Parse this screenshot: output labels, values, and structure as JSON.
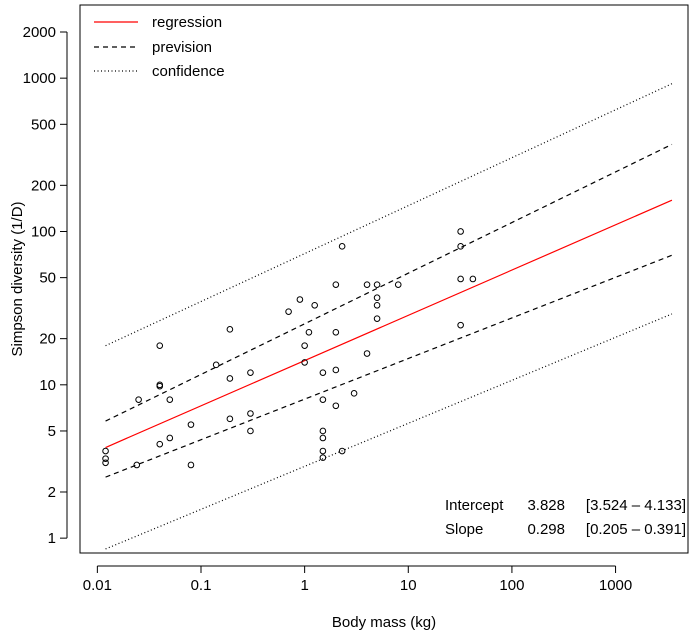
{
  "chart_data": {
    "type": "scatter",
    "xlabel": "Body mass (kg)",
    "ylabel": "Simpson diversity (1/D)",
    "xscale": "log",
    "yscale": "log",
    "xlim": [
      0.0068,
      5000
    ],
    "ylim": [
      0.8,
      3000
    ],
    "x_ticks": [
      0.01,
      0.1,
      1,
      10,
      100,
      1000
    ],
    "x_tick_labels": [
      "0.01",
      "0.1",
      "1",
      "10",
      "100",
      "1000"
    ],
    "y_ticks": [
      1,
      2,
      5,
      10,
      20,
      50,
      100,
      200,
      500,
      1000,
      2000
    ],
    "y_tick_labels": [
      "1",
      "2",
      "5",
      "10",
      "20",
      "50",
      "100",
      "200",
      "500",
      "1000",
      "2000"
    ],
    "grid": false,
    "legend_position": "top-left",
    "legend": [
      {
        "label": "regression",
        "color": "#ff0000",
        "style": "solid"
      },
      {
        "label": "prevision",
        "color": "#000000",
        "style": "dashed"
      },
      {
        "label": "confidence",
        "color": "#000000",
        "style": "dotted"
      }
    ],
    "stats": {
      "intercept_label": "Intercept",
      "intercept_value": "3.828",
      "intercept_ci": "[3.524 – 4.133]",
      "slope_label": "Slope",
      "slope_value": "0.298",
      "slope_ci": "[0.205 – 0.391]"
    },
    "lines": [
      {
        "name": "regression",
        "color": "#ff0000",
        "style": "solid",
        "x": [
          0.012,
          3500
        ],
        "y": [
          3.9,
          160
        ]
      },
      {
        "name": "prevision",
        "color": "#000000",
        "style": "dashed",
        "x": [
          0.012,
          3500
        ],
        "y": [
          5.8,
          370
        ]
      },
      {
        "name": "prevision",
        "color": "#000000",
        "style": "dashed",
        "x": [
          0.012,
          3500
        ],
        "y": [
          2.5,
          70
        ]
      },
      {
        "name": "confidence",
        "color": "#000000",
        "style": "dotted",
        "x": [
          0.012,
          3500
        ],
        "y": [
          18,
          920
        ]
      },
      {
        "name": "confidence",
        "color": "#000000",
        "style": "dotted",
        "x": [
          0.012,
          3500
        ],
        "y": [
          0.85,
          29
        ]
      }
    ],
    "points": [
      {
        "x": 0.012,
        "y": 3.7
      },
      {
        "x": 0.012,
        "y": 3.3
      },
      {
        "x": 0.012,
        "y": 3.1
      },
      {
        "x": 0.024,
        "y": 3.0
      },
      {
        "x": 0.025,
        "y": 8.0
      },
      {
        "x": 0.04,
        "y": 18
      },
      {
        "x": 0.04,
        "y": 10
      },
      {
        "x": 0.04,
        "y": 9.8
      },
      {
        "x": 0.04,
        "y": 4.1
      },
      {
        "x": 0.05,
        "y": 8.0
      },
      {
        "x": 0.05,
        "y": 4.5
      },
      {
        "x": 0.08,
        "y": 5.5
      },
      {
        "x": 0.08,
        "y": 3.0
      },
      {
        "x": 0.14,
        "y": 13.5
      },
      {
        "x": 0.19,
        "y": 23
      },
      {
        "x": 0.19,
        "y": 11
      },
      {
        "x": 0.19,
        "y": 6.0
      },
      {
        "x": 0.3,
        "y": 12
      },
      {
        "x": 0.3,
        "y": 6.5
      },
      {
        "x": 0.3,
        "y": 5.0
      },
      {
        "x": 0.7,
        "y": 30
      },
      {
        "x": 0.9,
        "y": 36
      },
      {
        "x": 1.0,
        "y": 18
      },
      {
        "x": 1.0,
        "y": 14
      },
      {
        "x": 1.1,
        "y": 22
      },
      {
        "x": 1.25,
        "y": 33
      },
      {
        "x": 1.5,
        "y": 12
      },
      {
        "x": 1.5,
        "y": 8.0
      },
      {
        "x": 1.5,
        "y": 5.0
      },
      {
        "x": 1.5,
        "y": 4.5
      },
      {
        "x": 1.5,
        "y": 3.7
      },
      {
        "x": 1.5,
        "y": 3.35
      },
      {
        "x": 2.0,
        "y": 45
      },
      {
        "x": 2.0,
        "y": 22
      },
      {
        "x": 2.0,
        "y": 12.5
      },
      {
        "x": 2.0,
        "y": 7.3
      },
      {
        "x": 2.3,
        "y": 80
      },
      {
        "x": 2.3,
        "y": 3.7
      },
      {
        "x": 3.0,
        "y": 8.8
      },
      {
        "x": 4.0,
        "y": 45
      },
      {
        "x": 4.0,
        "y": 16
      },
      {
        "x": 5.0,
        "y": 45
      },
      {
        "x": 5.0,
        "y": 37
      },
      {
        "x": 5.0,
        "y": 33
      },
      {
        "x": 5.0,
        "y": 27
      },
      {
        "x": 8.0,
        "y": 45
      },
      {
        "x": 32,
        "y": 100
      },
      {
        "x": 32,
        "y": 80
      },
      {
        "x": 32,
        "y": 49
      },
      {
        "x": 32,
        "y": 24.5
      },
      {
        "x": 42,
        "y": 49
      }
    ]
  }
}
